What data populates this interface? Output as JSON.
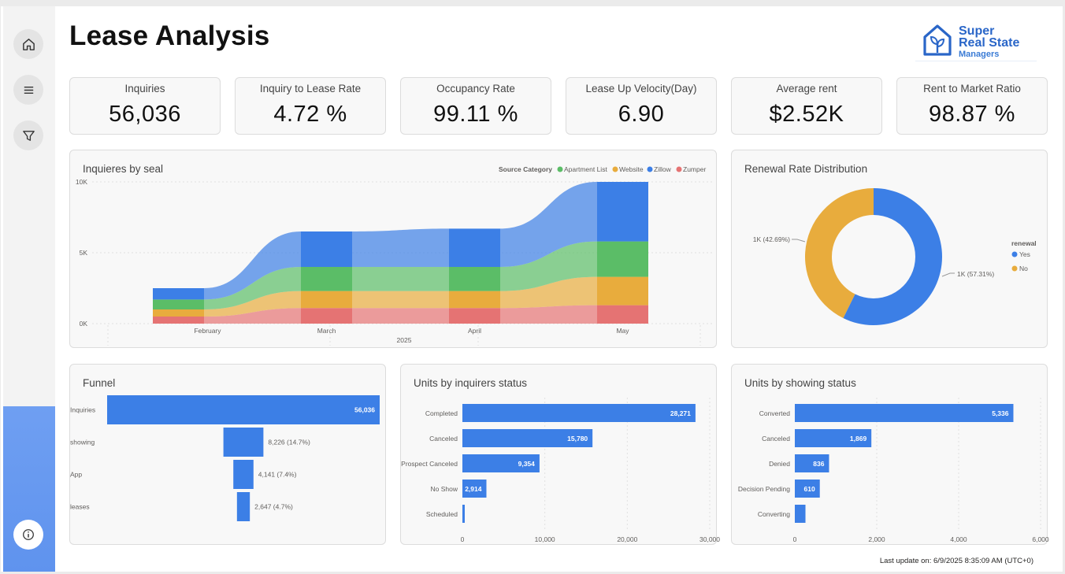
{
  "page": {
    "title": "Lease Analysis",
    "last_update": "Last update on: 6/9/2025 8:35:09 AM (UTC+0)"
  },
  "logo": {
    "line1": "Super",
    "line2": "Real State",
    "line3": "Managers"
  },
  "nav": {
    "icons": [
      "home-icon",
      "menu-icon",
      "filter-icon",
      "info-icon"
    ]
  },
  "kpis": [
    {
      "label": "Inquiries",
      "value": "56,036"
    },
    {
      "label": "Inquiry to Lease Rate",
      "value": "4.72 %"
    },
    {
      "label": "Occupancy Rate",
      "value": "99.11 %"
    },
    {
      "label": "Lease Up Velocity(Day)",
      "value": "6.90"
    },
    {
      "label": "Average rent",
      "value": "$2.52K"
    },
    {
      "label": "Rent to Market Ratio",
      "value": "98.87 %"
    }
  ],
  "colors": {
    "apartment_list": "#5bbd67",
    "website": "#e8ac3d",
    "zillow": "#3c7fe6",
    "zumper": "#e57373",
    "bar": "#3c7fe6",
    "yes": "#3c7fe6",
    "no": "#e8ac3d"
  },
  "chart_data": [
    {
      "type": "area",
      "title": "Inquieres by seal",
      "legend_title": "Source Category",
      "legend": [
        "Apartment List",
        "Website",
        "Zillow",
        "Zumper"
      ],
      "x": [
        "February",
        "March",
        "April",
        "May"
      ],
      "xlabel": "2025",
      "yticks": [
        "10K",
        "5K",
        "0K"
      ],
      "ylim": [
        0,
        10000
      ],
      "series": [
        {
          "name": "Zumper",
          "values": [
            500,
            1100,
            1100,
            1300
          ]
        },
        {
          "name": "Website",
          "values": [
            500,
            1200,
            1200,
            2000
          ]
        },
        {
          "name": "Apartment List",
          "values": [
            700,
            1700,
            1700,
            2500
          ]
        },
        {
          "name": "Zillow",
          "values": [
            800,
            2500,
            2700,
            4200
          ]
        }
      ]
    },
    {
      "type": "pie",
      "title": "Renewal Rate Distribution",
      "legend_title": "renewal",
      "legend": [
        "Yes",
        "No"
      ],
      "slices": [
        {
          "name": "Yes",
          "value": 57.31,
          "label": "1K (57.31%)"
        },
        {
          "name": "No",
          "value": 42.69,
          "label": "1K (42.69%)"
        }
      ]
    },
    {
      "type": "bar",
      "title": "Funnel",
      "categories": [
        "Inquiries",
        "showing",
        "App",
        "leases"
      ],
      "values": [
        56036,
        8226,
        4141,
        2647
      ],
      "labels": [
        "56,036",
        "8,226 (14.7%)",
        "4,141 (7.4%)",
        "2,647 (4.7%)"
      ]
    },
    {
      "type": "bar",
      "title": "Units by inquirers status",
      "categories": [
        "Completed",
        "Canceled",
        "Prospect Canceled",
        "No Show",
        "Scheduled"
      ],
      "values": [
        28271,
        15780,
        9354,
        2914,
        200
      ],
      "labels": [
        "28,271",
        "15,780",
        "9,354",
        "2,914",
        ""
      ],
      "xticks": [
        "0",
        "10,000",
        "20,000",
        "30,000"
      ],
      "xlim": [
        0,
        30000
      ]
    },
    {
      "type": "bar",
      "title": "Units by showing status",
      "categories": [
        "Converted",
        "Canceled",
        "Denied",
        "Decision Pending",
        "Converting"
      ],
      "values": [
        5336,
        1869,
        836,
        610,
        260
      ],
      "labels": [
        "5,336",
        "1,869",
        "836",
        "610",
        ""
      ],
      "xticks": [
        "0",
        "2,000",
        "4,000",
        "6,000"
      ],
      "xlim": [
        0,
        6000
      ]
    }
  ]
}
